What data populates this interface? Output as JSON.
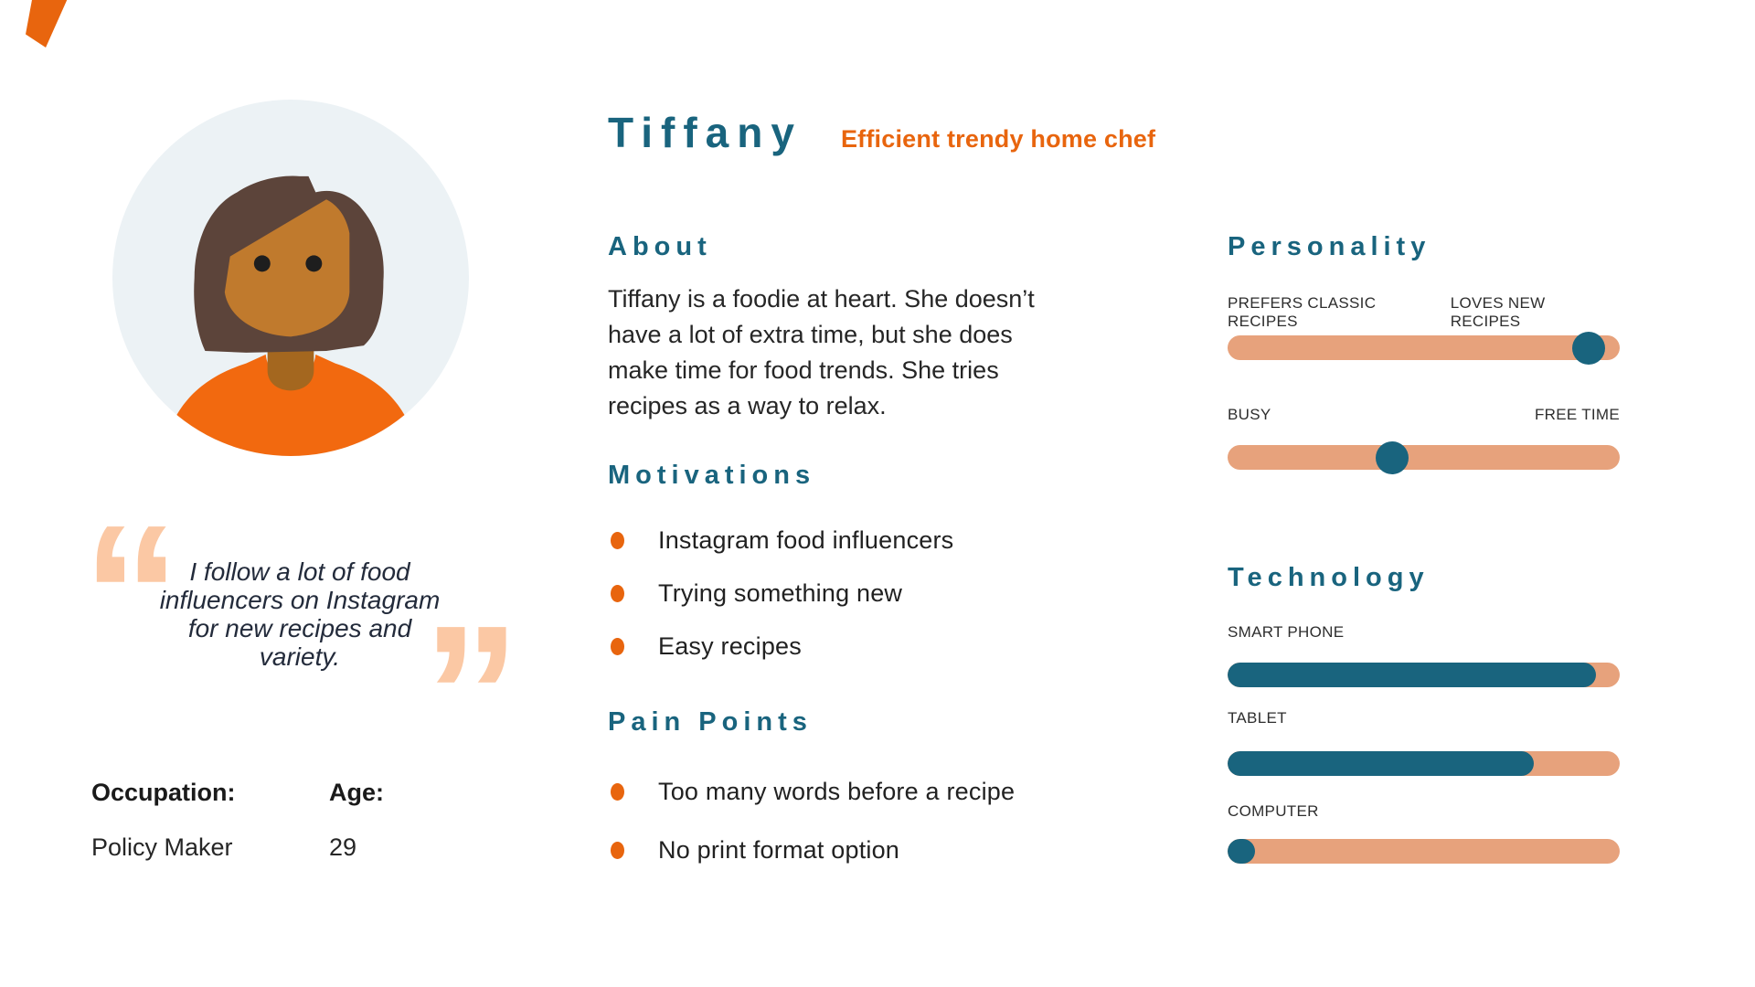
{
  "colors": {
    "teal": "#19647E",
    "orange": "#E8650E",
    "salmon": "#E7A27C",
    "peach": "#FBC8A4",
    "text": "#262626",
    "quote_text": "#232B3B",
    "avatar_bg": "#ECF2F5",
    "hair": "#5C443A",
    "skin": "#C07A2D",
    "skin_shadow": "#A4671F",
    "shirt": "#F2690F"
  },
  "persona": {
    "name": "Tiffany",
    "tagline": "Efficient trendy home chef",
    "quote": "I follow a lot of food influencers on Instagram for new recipes and variety.",
    "open_quote_mark": "“",
    "close_quote_mark": "”",
    "occupation_label": "Occupation:",
    "occupation_value": "Policy Maker",
    "age_label": "Age:",
    "age_value": "29"
  },
  "about": {
    "heading": "About",
    "text": "Tiffany is a foodie at heart. She doesn’t have a lot of extra time, but she does make time for food trends. She tries recipes as a way to relax."
  },
  "motivations": {
    "heading": "Motivations",
    "items": [
      "Instagram food influencers",
      "Trying something new",
      "Easy recipes"
    ]
  },
  "pain_points": {
    "heading": "Pain Points",
    "items": [
      "Too many words before a recipe",
      "No print format option"
    ]
  },
  "personality": {
    "heading": "Personality",
    "sliders": [
      {
        "left_label": "PREFERS CLASSIC RECIPES",
        "right_label": "LOVES NEW RECIPES",
        "value_pct": 92
      },
      {
        "left_label": "BUSY",
        "right_label": "FREE TIME",
        "value_pct": 42
      }
    ]
  },
  "technology": {
    "heading": "Technology",
    "bars": [
      {
        "label": "SMART PHONE",
        "value_pct": 94
      },
      {
        "label": "TABLET",
        "value_pct": 78
      },
      {
        "label": "COMPUTER",
        "value_pct": 7
      }
    ]
  }
}
